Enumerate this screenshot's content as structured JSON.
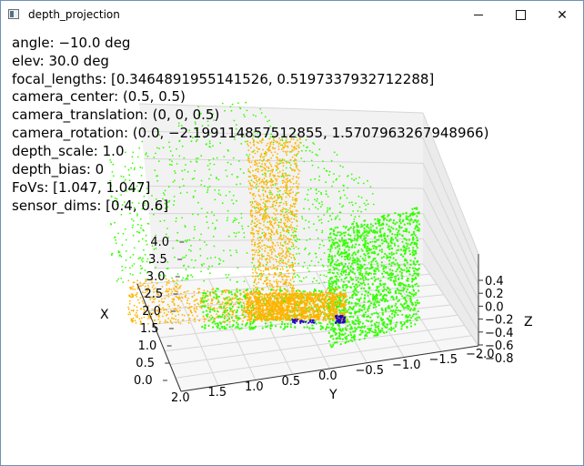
{
  "window": {
    "title": "depth_projection",
    "icon": "matplotlib-window-icon",
    "controls": {
      "minimize": "minimize-icon",
      "maximize": "maximize-icon",
      "close": "close-icon"
    }
  },
  "info_lines": [
    "angle: −10.0 deg",
    "elev: 30.0 deg",
    "focal_lengths: [0.3464891955141526, 0.5197337932712288]",
    "camera_center: (0.5, 0.5)",
    "camera_translation: (0, 0, 0.5)",
    "camera_rotation: (0.0, −2.199114857512855, 1.5707963267948966)",
    "depth_scale: 1.0",
    "depth_bias: 0",
    "FoVs: [1.047, 1.047]",
    "sensor_dims: [0.4, 0.6]"
  ],
  "axes": {
    "x": {
      "label": "X",
      "ticks": [
        "0.0",
        "0.5",
        "1.0",
        "1.5",
        "2.0",
        "2.5",
        "3.0",
        "3.5",
        "4.0"
      ]
    },
    "y": {
      "label": "Y",
      "ticks": [
        "2.0",
        "1.5",
        "1.0",
        "0.5",
        "0.0",
        "−0.5",
        "−1.0",
        "−1.5",
        "−2.0"
      ]
    },
    "z": {
      "label": "Z",
      "ticks": [
        "0.4",
        "0.2",
        "0.0",
        "−0.2",
        "−0.4",
        "−0.6",
        "−0.8"
      ]
    }
  },
  "chart_data": {
    "type": "scatter",
    "projection": "3d",
    "view": {
      "azim_deg": -10.0,
      "elev_deg": 30.0
    },
    "xlim": [
      0.0,
      4.0
    ],
    "ylim": [
      -2.0,
      2.0
    ],
    "zlim": [
      -0.8,
      0.4
    ],
    "grid": true,
    "colors": {
      "green_points": "#33ff00",
      "orange_points": "#ffb400",
      "blue_points": "#2200cc"
    }
  }
}
